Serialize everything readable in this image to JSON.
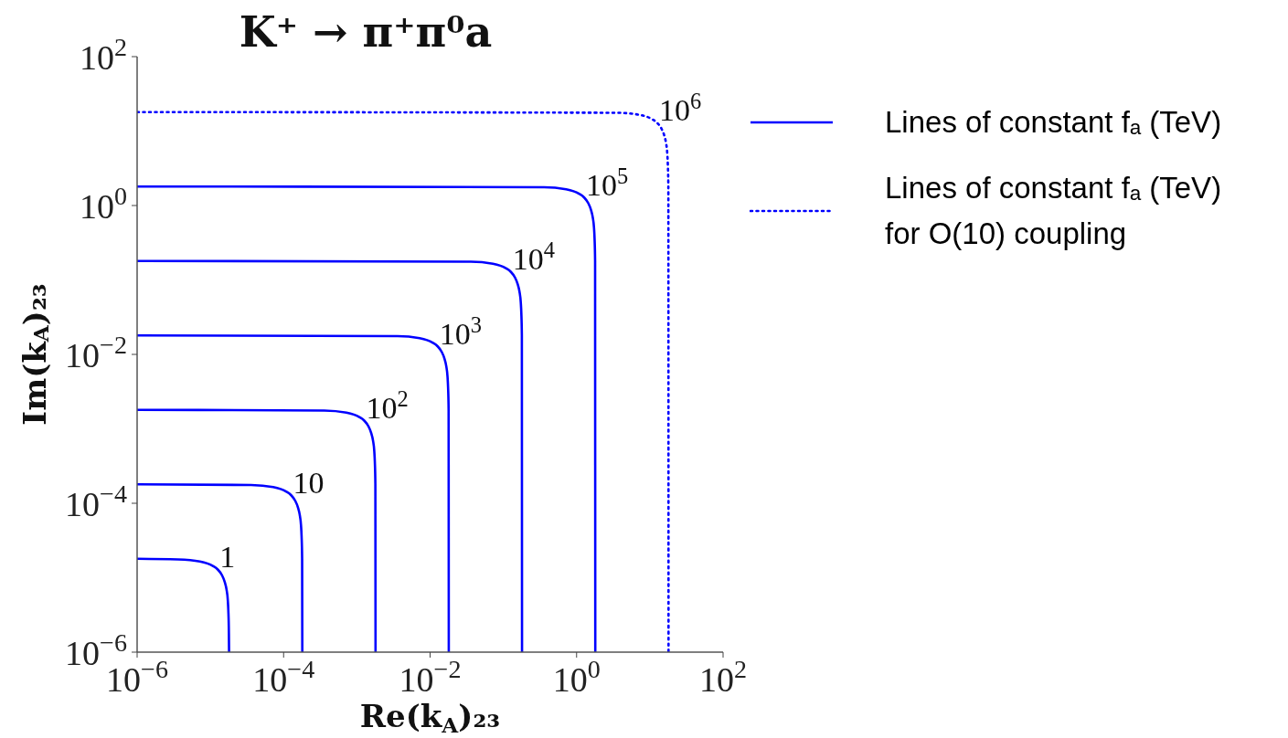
{
  "chart_data": {
    "type": "line",
    "title": "K⁺ → π⁺π⁰a",
    "xlabel": "Re(k$_{A}$)₂₃",
    "ylabel": "Im(k$_{A}$)₂₃",
    "log": "xy",
    "legend": "right",
    "xlim": [
      1e-06,
      100
    ],
    "ylim": [
      1e-06,
      100
    ],
    "xticks": [
      {
        "value": 1e-06,
        "label": "10$^{−6}$"
      },
      {
        "value": 0.0001,
        "label": "10$^{−4}$"
      },
      {
        "value": 0.01,
        "label": "10$^{−2}$"
      },
      {
        "value": 1,
        "label": "10$^{0}$"
      },
      {
        "value": 100,
        "label": "10$^{2}$"
      }
    ],
    "yticks": [
      {
        "value": 1e-06,
        "label": "10$^{−6}$"
      },
      {
        "value": 0.0001,
        "label": "10$^{−4}$"
      },
      {
        "value": 0.01,
        "label": "10$^{−2}$"
      },
      {
        "value": 1,
        "label": "10$^{0}$"
      },
      {
        "value": 100,
        "label": "10$^{2}$"
      }
    ],
    "series": [
      {
        "name": "Lines of constant fₐ (TeV)",
        "color": "#0000ff",
        "line_style": "solid",
        "x": [
          1e-06,
          3.6e-06,
          7.2e-06,
          1.08e-05,
          1.26e-05,
          1.44e-05,
          1.57e-05,
          1.66e-05,
          1.73e-05,
          1.76e-05,
          1.79e-05,
          1.8e-05,
          null,
          1e-06,
          3.6e-05,
          7.2e-05,
          0.000108,
          0.000126,
          0.000144,
          0.000157,
          0.000166,
          0.000173,
          0.000176,
          0.000179,
          0.00018,
          null,
          1e-06,
          0.00036,
          0.00072,
          0.00108,
          0.00126,
          0.00144,
          0.00157,
          0.00166,
          0.00173,
          0.00176,
          0.00179,
          0.0018,
          null,
          1e-06,
          0.0036,
          0.0072,
          0.0108,
          0.0126,
          0.0144,
          0.0157,
          0.0166,
          0.0173,
          0.0176,
          0.0179,
          0.018,
          null,
          1e-06,
          0.036,
          0.072,
          0.108,
          0.126,
          0.144,
          0.157,
          0.166,
          0.173,
          0.176,
          0.179,
          0.18,
          null,
          1e-06,
          0.36,
          0.72,
          1.08,
          1.26,
          1.44,
          1.57,
          1.66,
          1.73,
          1.76,
          1.79,
          1.8
        ],
        "values": [
          1.8e-05,
          1.76e-05,
          1.65e-05,
          1.44e-05,
          1.29e-05,
          1.08e-05,
          8.8e-06,
          7e-06,
          5e-06,
          3.6e-06,
          1.8e-06,
          1e-06,
          null,
          0.00018,
          0.000176,
          0.000165,
          0.000144,
          0.000129,
          0.000108,
          8.8e-05,
          7e-05,
          5e-05,
          3.6e-05,
          1.8e-05,
          1e-06,
          null,
          0.0018,
          0.00176,
          0.00165,
          0.00144,
          0.00129,
          0.00108,
          0.00088,
          0.0007,
          0.0005,
          0.00036,
          0.00018,
          1e-06,
          null,
          0.018,
          0.0176,
          0.0165,
          0.0144,
          0.0129,
          0.0108,
          0.0088,
          0.007,
          0.005,
          0.0036,
          0.0018,
          1e-06,
          null,
          0.18,
          0.176,
          0.165,
          0.144,
          0.129,
          0.108,
          0.088,
          0.07,
          0.05,
          0.036,
          0.018,
          1e-06,
          null,
          1.8,
          1.76,
          1.65,
          1.44,
          1.29,
          1.08,
          0.88,
          0.7,
          0.5,
          0.36,
          0.18,
          1e-06
        ]
      },
      {
        "name": "Lines of constant fₐ (TeV) for O(10) coupling",
        "color": "#0000ff",
        "line_style": "dotted",
        "x": [
          1e-06,
          3.6,
          7.2,
          10.8,
          12.6,
          14.4,
          15.7,
          16.6,
          17.3,
          17.6,
          17.9,
          18
        ],
        "values": [
          18,
          17.6,
          16.5,
          14.4,
          12.9,
          10.8,
          8.8,
          7,
          5,
          3.6,
          1.8,
          1e-06
        ]
      }
    ],
    "annotations": [
      {
        "text": "1",
        "x": 1.3e-05,
        "y": 1.3e-05
      },
      {
        "text": "10",
        "x": 0.00013,
        "y": 0.00013
      },
      {
        "text": "10$^{2}$",
        "x": 0.0013,
        "y": 0.0013
      },
      {
        "text": "10$^{3}$",
        "x": 0.013,
        "y": 0.013
      },
      {
        "text": "10$^{4}$",
        "x": 0.13,
        "y": 0.13
      },
      {
        "text": "10$^{5}$",
        "x": 1.3,
        "y": 1.3
      },
      {
        "text": "10$^{6}$",
        "x": 13,
        "y": 13
      }
    ]
  }
}
